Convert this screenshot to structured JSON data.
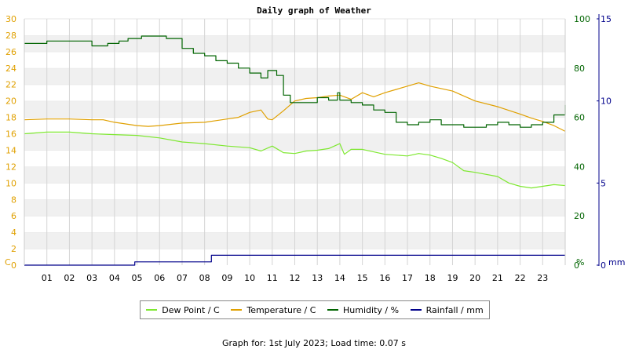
{
  "chart_data": {
    "type": "line",
    "title": "Daily graph of Weather",
    "x_ticks": [
      "01",
      "02",
      "03",
      "04",
      "05",
      "06",
      "07",
      "08",
      "09",
      "10",
      "11",
      "12",
      "13",
      "14",
      "15",
      "16",
      "17",
      "18",
      "19",
      "20",
      "21",
      "22",
      "23"
    ],
    "x_range": [
      0,
      24
    ],
    "left_axis": {
      "unit_label": "C",
      "range": [
        0,
        30
      ],
      "ticks": [
        0,
        2,
        4,
        6,
        8,
        10,
        12,
        14,
        16,
        18,
        20,
        22,
        24,
        26,
        28,
        30
      ],
      "color": "#e0a000"
    },
    "right_axis_1": {
      "unit_label": "%",
      "range": [
        0,
        100
      ],
      "ticks": [
        0,
        20,
        40,
        60,
        80,
        100
      ],
      "color": "#006400"
    },
    "right_axis_2": {
      "unit_label": "mm",
      "range": [
        0,
        15
      ],
      "ticks": [
        0,
        5,
        10,
        15
      ],
      "color": "#00008b"
    },
    "grid": true,
    "legend_position": "bottom",
    "series": [
      {
        "name": "Dew Point / C",
        "axis": "left",
        "color": "#7ee830",
        "step": false,
        "x": [
          0,
          1,
          2,
          3,
          4,
          5,
          6,
          7,
          8,
          9,
          10,
          10.5,
          11,
          11.5,
          12,
          12.5,
          13,
          13.5,
          14,
          14.2,
          14.5,
          15,
          16,
          17,
          17.5,
          18,
          18.5,
          19,
          19.5,
          20,
          21,
          21.5,
          22,
          22.5,
          23,
          23.5,
          24
        ],
        "y": [
          16.0,
          16.2,
          16.2,
          16.0,
          15.9,
          15.8,
          15.5,
          15.0,
          14.8,
          14.5,
          14.3,
          13.9,
          14.5,
          13.7,
          13.6,
          13.9,
          14.0,
          14.2,
          14.8,
          13.5,
          14.1,
          14.1,
          13.5,
          13.3,
          13.6,
          13.4,
          13.0,
          12.5,
          11.5,
          11.3,
          10.8,
          10.0,
          9.6,
          9.4,
          9.6,
          9.8,
          9.7
        ]
      },
      {
        "name": "Temperature / C",
        "axis": "left",
        "color": "#e0a000",
        "step": false,
        "x": [
          0,
          1,
          2,
          3,
          3.5,
          4,
          5,
          5.5,
          6,
          7,
          8,
          8.5,
          9,
          9.5,
          10,
          10.5,
          10.8,
          11,
          11.5,
          12,
          12.5,
          13,
          13.5,
          14,
          14.5,
          15,
          15.5,
          16,
          16.5,
          17,
          17.5,
          18,
          19,
          20,
          21,
          22,
          22.5,
          23,
          23.5,
          24
        ],
        "y": [
          17.7,
          17.8,
          17.8,
          17.7,
          17.7,
          17.4,
          17.0,
          16.9,
          17.0,
          17.3,
          17.4,
          17.6,
          17.8,
          18.0,
          18.6,
          18.9,
          17.8,
          17.7,
          18.8,
          20.0,
          20.3,
          20.4,
          20.6,
          20.7,
          20.2,
          21.0,
          20.5,
          21.0,
          21.4,
          21.8,
          22.2,
          21.8,
          21.2,
          20.0,
          19.3,
          18.4,
          17.9,
          17.5,
          17.0,
          16.3
        ]
      },
      {
        "name": "Humidity / %",
        "axis": "right_1",
        "color": "#006400",
        "step": true,
        "x": [
          0,
          1,
          1.5,
          3,
          3.7,
          4.2,
          4.6,
          5.2,
          6.3,
          7,
          7.5,
          8,
          8.5,
          9,
          9.5,
          10,
          10.5,
          10.8,
          11.2,
          11.5,
          11.8,
          12.5,
          13,
          13.5,
          13.9,
          14,
          14.5,
          15,
          15.5,
          16,
          16.5,
          17,
          17.5,
          18,
          18.5,
          19,
          19.5,
          20,
          20.5,
          21,
          21.5,
          22,
          22.5,
          23,
          23.5,
          24
        ],
        "y": [
          90,
          91,
          91,
          89,
          90,
          91,
          92,
          93,
          92,
          88,
          86,
          85,
          83,
          82,
          80,
          78,
          76,
          79,
          77,
          69,
          66,
          66,
          68,
          67,
          70,
          67,
          66,
          65,
          63,
          62,
          58,
          57,
          58,
          59,
          57,
          57,
          56,
          56,
          57,
          58,
          57,
          56,
          57,
          58,
          61,
          65
        ]
      },
      {
        "name": "Rainfall / mm",
        "axis": "right_2",
        "color": "#00008b",
        "step": true,
        "x": [
          0,
          4.9,
          8.3,
          24
        ],
        "y": [
          0,
          0.2,
          0.6,
          0.6
        ]
      }
    ],
    "footer": "Graph for: 1st July 2023; Load time: 0.07 s"
  }
}
